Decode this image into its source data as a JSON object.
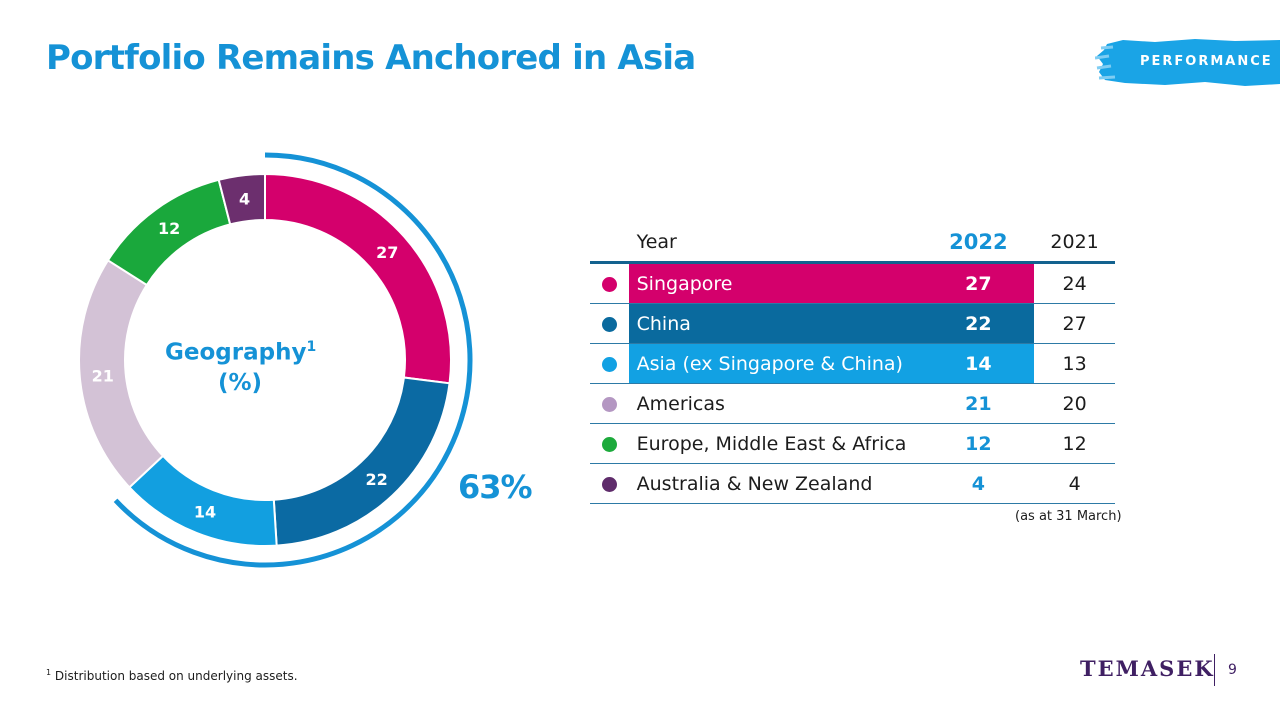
{
  "title": "Portfolio Remains Anchored in Asia",
  "section_tag": "PERFORMANCE",
  "donut_label": {
    "main": "Geography",
    "superscript": "1",
    "unit": "(%)"
  },
  "asia_share_label": "63%",
  "table": {
    "headers": {
      "name": "Year",
      "current": "2022",
      "previous": "2021"
    },
    "rows": [
      {
        "name": "Singapore",
        "v2022": "27",
        "v2021": "24",
        "color": "#d4006c",
        "highlight": true
      },
      {
        "name": "China",
        "v2022": "22",
        "v2021": "27",
        "color": "#0a6a9e",
        "highlight": true
      },
      {
        "name": "Asia (ex Singapore & China)",
        "v2022": "14",
        "v2021": "13",
        "color": "#12a1e3",
        "highlight": true
      },
      {
        "name": "Americas",
        "v2022": "21",
        "v2021": "20",
        "color": "#b497c2",
        "highlight": false
      },
      {
        "name": "Europe, Middle East & Africa",
        "v2022": "12",
        "v2021": "12",
        "color": "#1daa3c",
        "highlight": false
      },
      {
        "name": "Australia & New Zealand",
        "v2022": "4",
        "v2021": "4",
        "color": "#5f2c6b",
        "highlight": false
      }
    ],
    "note": "(as at 31 March)"
  },
  "chart_data": {
    "type": "pie",
    "variant": "donut",
    "categories": [
      "Singapore",
      "China",
      "Asia (ex Singapore & China)",
      "Americas",
      "Europe, Middle East & Africa",
      "Australia & New Zealand"
    ],
    "values": [
      27,
      22,
      14,
      21,
      12,
      4
    ],
    "colors": [
      "#d4006c",
      "#0b6aa3",
      "#129fe0",
      "#d3c2d6",
      "#1aa83c",
      "#6c2f6e"
    ],
    "highlighted_share": 63,
    "highlighted_categories": [
      "Singapore",
      "China",
      "Asia (ex Singapore & China)"
    ]
  },
  "footnote": {
    "marker": "1",
    "text": "Distribution  based  on  underlying  assets."
  },
  "logo": "TEMASEK",
  "page_number": "9",
  "colors": {
    "accent": "#1592d6",
    "brand_purple": "#3f1f63",
    "table_rule": "#13628f"
  }
}
